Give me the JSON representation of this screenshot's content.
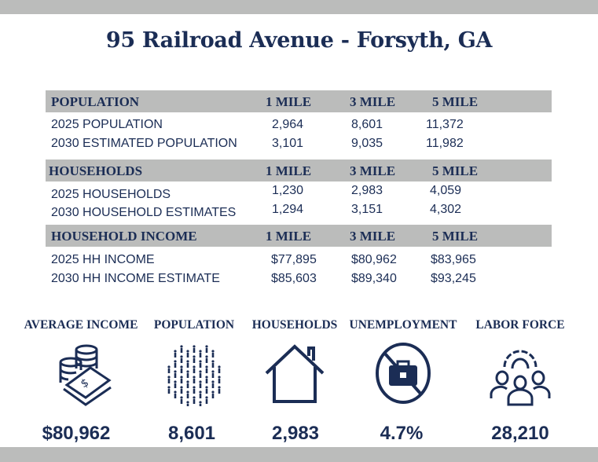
{
  "title": "95 Railroad Avenue - Forsyth, GA",
  "colors": {
    "navy": "#1b2d55",
    "gray": "#bbbcbb"
  },
  "sections": [
    {
      "heading": "POPULATION",
      "cols": [
        "1 MILE",
        "3 MILE",
        "5 MILE"
      ],
      "rows": [
        {
          "label": "2025 POPULATION",
          "values": [
            "2,964",
            "8,601",
            "11,372"
          ]
        },
        {
          "label": "2030 ESTIMATED POPULATION",
          "values": [
            "3,101",
            "9,035",
            "11,982"
          ]
        }
      ]
    },
    {
      "heading": "HOUSEHOLDS",
      "cols": [
        "1 MILE",
        "3 MILE",
        "5 MILE"
      ],
      "rows": [
        {
          "label": "2025 HOUSEHOLDS",
          "values": [
            "1,230",
            "2,983",
            "4,059"
          ]
        },
        {
          "label": "2030 HOUSEHOLD ESTIMATES",
          "values": [
            "1,294",
            "3,151",
            "4,302"
          ]
        }
      ]
    },
    {
      "heading": "HOUSEHOLD INCOME",
      "cols": [
        "1 MILE",
        "3 MILE",
        "5 MILE"
      ],
      "rows": [
        {
          "label": "2025 HH INCOME",
          "values": [
            "$77,895",
            "$80,962",
            "$83,965"
          ]
        },
        {
          "label": "2030 HH INCOME ESTIMATE",
          "values": [
            "$85,603",
            "$89,340",
            "$93,245"
          ]
        }
      ]
    }
  ],
  "stats": [
    {
      "label": "AVERAGE INCOME",
      "value": "$80,962",
      "icon": "money-coins-icon"
    },
    {
      "label": "POPULATION",
      "value": "8,601",
      "icon": "people-crowd-icon"
    },
    {
      "label": "HOUSEHOLDS",
      "value": "2,983",
      "icon": "house-icon"
    },
    {
      "label": "UNEMPLOYMENT",
      "value": "4.7%",
      "icon": "no-briefcase-icon"
    },
    {
      "label": "LABOR FORCE",
      "value": "28,210",
      "icon": "team-gear-icon"
    }
  ]
}
